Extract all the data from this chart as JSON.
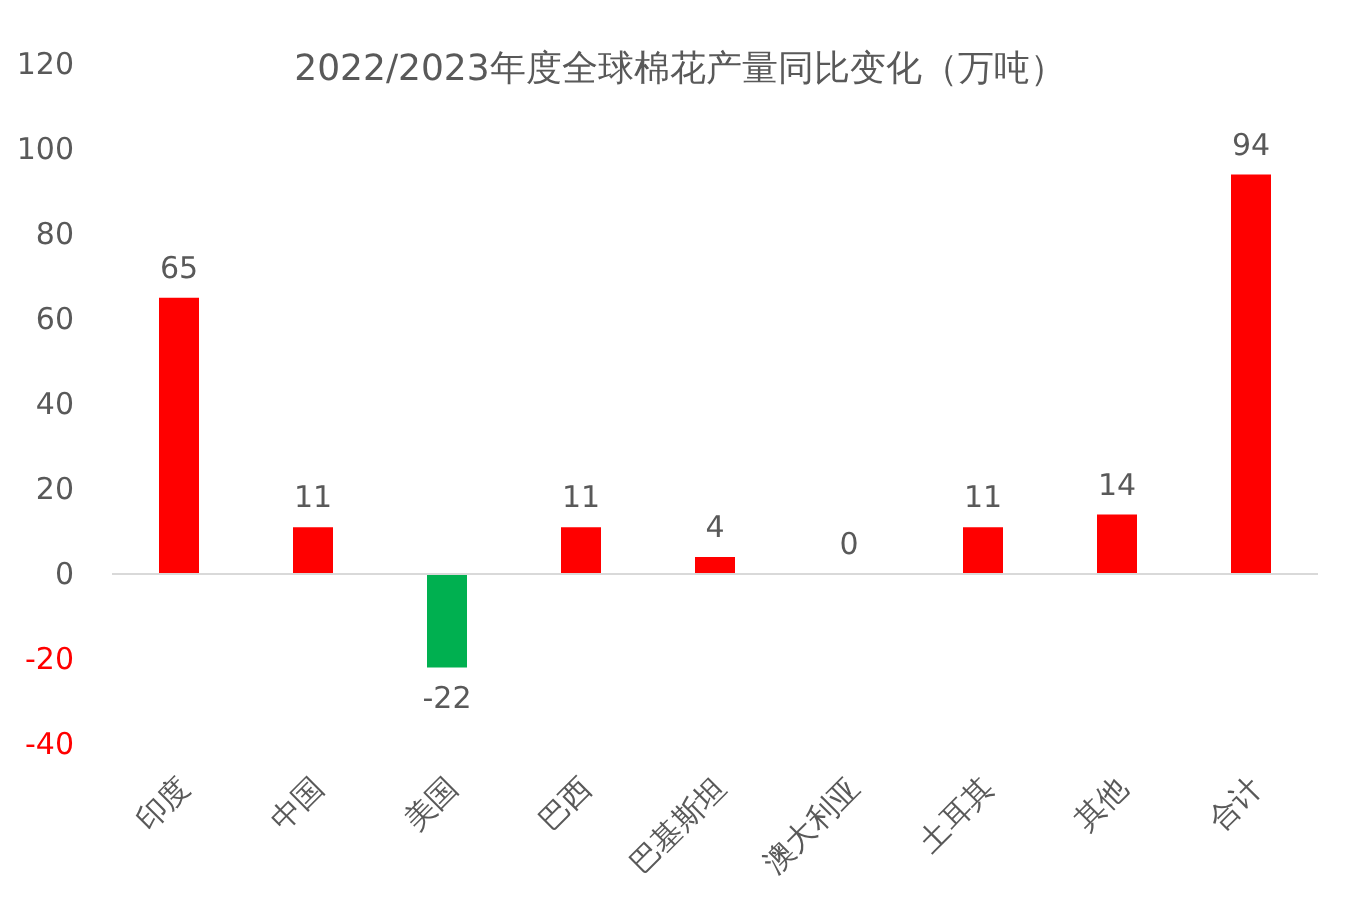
{
  "chart_data": {
    "type": "bar",
    "title": "2022/2023年度全球棉花产量同比变化（万吨）",
    "categories": [
      "印度",
      "中国",
      "美国",
      "巴西",
      "巴基斯坦",
      "澳大利亚",
      "土耳其",
      "其他",
      "合计"
    ],
    "values": [
      65,
      11,
      -22,
      11,
      4,
      0,
      11,
      14,
      94
    ],
    "colors": [
      "#ff0000",
      "#ff0000",
      "#00b050",
      "#ff0000",
      "#ff0000",
      "#ff0000",
      "#ff0000",
      "#ff0000",
      "#ff0000"
    ],
    "ylim": [
      -40,
      120
    ],
    "yticks": [
      -40,
      -20,
      0,
      20,
      40,
      60,
      80,
      100,
      120
    ],
    "data_labels": true
  }
}
